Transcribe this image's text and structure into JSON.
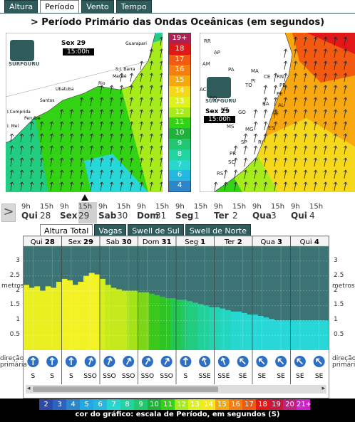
{
  "top_tabs": [
    {
      "label": "Altura",
      "active": false
    },
    {
      "label": "Período",
      "active": true
    },
    {
      "label": "Vento",
      "active": false
    },
    {
      "label": "Tempo",
      "active": false
    }
  ],
  "title": "> Período Primário das Ondas Oceânicas (em segundos)",
  "map_left": {
    "logo_text": "SURFGURU",
    "day_label": "Sex 29",
    "time_label": "15:00h",
    "places": [
      "Guarapari",
      "S.J. Barra",
      "Macaé",
      "Rio",
      "Ubatuba",
      "Santos",
      "I.Comprida",
      "Peruíbe",
      "I. Mel"
    ]
  },
  "map_right": {
    "logo_text": "SURFGURU",
    "day_label": "Sex 29",
    "time_label": "15:00h",
    "states": [
      "AP",
      "PA",
      "MA",
      "CE",
      "RN",
      "PB",
      "PE",
      "AL",
      "SE",
      "BA",
      "TO",
      "PI",
      "MT",
      "GO",
      "MG",
      "MS",
      "SP",
      "RJ",
      "PR",
      "SC",
      "RS",
      "ES",
      "AM",
      "AC",
      "RO",
      "RR"
    ]
  },
  "color_scale": [
    {
      "label": "19+",
      "color": "#b02050"
    },
    {
      "label": "18",
      "color": "#e01818"
    },
    {
      "label": "17",
      "color": "#f25a12"
    },
    {
      "label": "16",
      "color": "#f57e10"
    },
    {
      "label": "15",
      "color": "#f7a810"
    },
    {
      "label": "14",
      "color": "#f5d81c"
    },
    {
      "label": "13",
      "color": "#dff21e"
    },
    {
      "label": "12",
      "color": "#a6ec1c"
    },
    {
      "label": "11",
      "color": "#34d214"
    },
    {
      "label": "10",
      "color": "#1eb23a"
    },
    {
      "label": "9",
      "color": "#22c870"
    },
    {
      "label": "8",
      "color": "#22d4a0"
    },
    {
      "label": "7",
      "color": "#28d8d0"
    },
    {
      "label": "6",
      "color": "#24b8e0"
    },
    {
      "label": "4",
      "color": "#2e86c8"
    }
  ],
  "day_nav": [
    {
      "times": [
        "9h",
        "15h"
      ],
      "day": "Qui",
      "date": "28"
    },
    {
      "times": [
        "9h",
        "15h"
      ],
      "day": "Sex",
      "date": "29"
    },
    {
      "times": [
        "9h",
        "15h"
      ],
      "day": "Sab",
      "date": "30"
    },
    {
      "times": [
        "9h",
        "15h"
      ],
      "day": "Dom",
      "date": "31"
    },
    {
      "times": [
        "9h",
        "15h"
      ],
      "day": "Seg",
      "date": "1"
    },
    {
      "times": [
        "9h",
        "15h"
      ],
      "day": "Ter",
      "date": "2"
    },
    {
      "times": [
        "9h",
        "15h"
      ],
      "day": "Qua",
      "date": "3"
    },
    {
      "times": [
        "9h",
        "15h"
      ],
      "day": "Qui",
      "date": "4"
    }
  ],
  "chart_tabs": [
    {
      "label": "Altura Total",
      "active": true
    },
    {
      "label": "Vagas",
      "active": false
    },
    {
      "label": "Swell de Sul",
      "active": false
    },
    {
      "label": "Swell de Norte",
      "active": false
    }
  ],
  "side_label_metros": "metros",
  "side_label_direcao": "direção primária",
  "chart_data": {
    "type": "area",
    "days": [
      {
        "day": "Qui",
        "date": "28"
      },
      {
        "day": "Sex",
        "date": "29"
      },
      {
        "day": "Sab",
        "date": "30"
      },
      {
        "day": "Dom",
        "date": "31"
      },
      {
        "day": "Seg",
        "date": "1"
      },
      {
        "day": "Ter",
        "date": "2"
      },
      {
        "day": "Qua",
        "date": "3"
      },
      {
        "day": "Qui",
        "date": "4"
      }
    ],
    "y_ticks": [
      "3",
      "2.5",
      "2",
      "1.5",
      "1",
      "0.5"
    ],
    "y_ticks_right": [
      "3",
      "2.5",
      "2",
      "1.5",
      "1",
      "0.5"
    ],
    "ylim": [
      0,
      3.5
    ],
    "heights": [
      2.2,
      2.1,
      2.15,
      2.0,
      2.15,
      2.1,
      2.3,
      2.4,
      2.35,
      2.2,
      2.3,
      2.5,
      2.6,
      2.55,
      2.4,
      2.2,
      2.1,
      2.05,
      2.0,
      2.0,
      2.0,
      1.95,
      1.95,
      1.9,
      1.85,
      1.8,
      1.75,
      1.75,
      1.7,
      1.7,
      1.65,
      1.6,
      1.55,
      1.5,
      1.45,
      1.45,
      1.4,
      1.35,
      1.3,
      1.3,
      1.25,
      1.2,
      1.2,
      1.15,
      1.1,
      1.05,
      1.0,
      1.0,
      1.0,
      1.0,
      1.0,
      1.0,
      1.0,
      1.0,
      1.0,
      1.0
    ],
    "period_colors": [
      "#eaf020",
      "#eaf020",
      "#eaf020",
      "#eaf020",
      "#eaf020",
      "#eaf020",
      "#eaf020",
      "#f2f224",
      "#f2f224",
      "#f2f224",
      "#f2f224",
      "#f2f224",
      "#f2f224",
      "#f2f224",
      "#d4ee1e",
      "#c4ea1c",
      "#c4ea1c",
      "#c4ea1c",
      "#c4ea1c",
      "#a6e21a",
      "#a6e21a",
      "#7cd61a",
      "#7cd61a",
      "#3cc81c",
      "#3cc81c",
      "#2ec426",
      "#2ec426",
      "#22c850",
      "#22c850",
      "#22c86a",
      "#22cc80",
      "#22cc80",
      "#22d09a",
      "#22d09a",
      "#22d4b0",
      "#22d4b0",
      "#22d6c0",
      "#22d6c0",
      "#26d8d0",
      "#26d8d0",
      "#26d8d0",
      "#26d8d0",
      "#28d8d8",
      "#28d8d8",
      "#28d8d8",
      "#28d8d8",
      "#28d8d8",
      "#28d8d8",
      "#28d8d8",
      "#28d8d8",
      "#28d8d8",
      "#28d8d8",
      "#28d8d8",
      "#28d8d8",
      "#28d8d8",
      "#28d8d8"
    ],
    "directions": [
      {
        "label": "S",
        "rot": 180
      },
      {
        "label": "S",
        "rot": 180
      },
      {
        "label": "S",
        "rot": 180
      },
      {
        "label": "SSO",
        "rot": 200
      },
      {
        "label": "SSO",
        "rot": 200
      },
      {
        "label": "SSO",
        "rot": 210
      },
      {
        "label": "SSO",
        "rot": 210
      },
      {
        "label": "SSO",
        "rot": 210
      },
      {
        "label": "S",
        "rot": 180
      },
      {
        "label": "SSE",
        "rot": 160
      },
      {
        "label": "SSE",
        "rot": 160
      },
      {
        "label": "SE",
        "rot": 135
      },
      {
        "label": "SE",
        "rot": 135
      },
      {
        "label": "SE",
        "rot": 135
      },
      {
        "label": "SE",
        "rot": 135
      },
      {
        "label": "SE",
        "rot": 135
      }
    ]
  },
  "legend_values": [
    {
      "label": "2",
      "color": "#2c4aa8"
    },
    {
      "label": "3",
      "color": "#2c62c0"
    },
    {
      "label": "4",
      "color": "#2e86c8"
    },
    {
      "label": "5",
      "color": "#24a8e0"
    },
    {
      "label": "6",
      "color": "#24b8e0"
    },
    {
      "label": "7",
      "color": "#28d8d0"
    },
    {
      "label": "8",
      "color": "#22d4a0"
    },
    {
      "label": "9",
      "color": "#22c870"
    },
    {
      "label": "10",
      "color": "#1eb23a"
    },
    {
      "label": "11",
      "color": "#34d214"
    },
    {
      "label": "12",
      "color": "#a6ec1c"
    },
    {
      "label": "13",
      "color": "#dff21e"
    },
    {
      "label": "14",
      "color": "#f5e81c"
    },
    {
      "label": "15",
      "color": "#f7a810"
    },
    {
      "label": "16",
      "color": "#f57e10"
    },
    {
      "label": "17",
      "color": "#f25a12"
    },
    {
      "label": "18",
      "color": "#e01818"
    },
    {
      "label": "19",
      "color": "#c81840"
    },
    {
      "label": "20",
      "color": "#c02080"
    },
    {
      "label": "21+",
      "color": "#d020d0"
    }
  ],
  "legend_caption": "cor do gráfico: escala de Período, em segundos (S)",
  "nav_arrow": ">"
}
